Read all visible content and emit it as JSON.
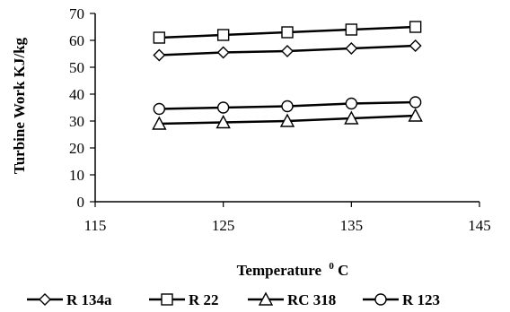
{
  "chart_data": {
    "type": "line",
    "title": "",
    "xlabel": "Temperature",
    "xlabel_sup": "0",
    "xlabel_unit": "C",
    "ylabel": "Turbine Work KJ/kg",
    "xlim": [
      115,
      145
    ],
    "ylim": [
      0,
      70
    ],
    "x_ticks": [
      "115",
      "125",
      "135",
      "145"
    ],
    "y_ticks": [
      "0",
      "10",
      "20",
      "30",
      "40",
      "50",
      "60",
      "70"
    ],
    "x": [
      120,
      125,
      130,
      135,
      140
    ],
    "grid": false,
    "legend_position": "bottom",
    "series": [
      {
        "name": "R 134a",
        "marker": "diamond",
        "values": [
          54.5,
          55.5,
          56.0,
          57.0,
          58.0
        ]
      },
      {
        "name": "R 22",
        "marker": "square",
        "values": [
          61.0,
          62.0,
          63.0,
          64.0,
          65.0
        ]
      },
      {
        "name": "RC 318",
        "marker": "triangle",
        "values": [
          29.0,
          29.5,
          30.0,
          31.0,
          32.0
        ]
      },
      {
        "name": "R 123",
        "marker": "circle",
        "values": [
          34.5,
          35.0,
          35.5,
          36.5,
          37.0
        ]
      }
    ]
  }
}
